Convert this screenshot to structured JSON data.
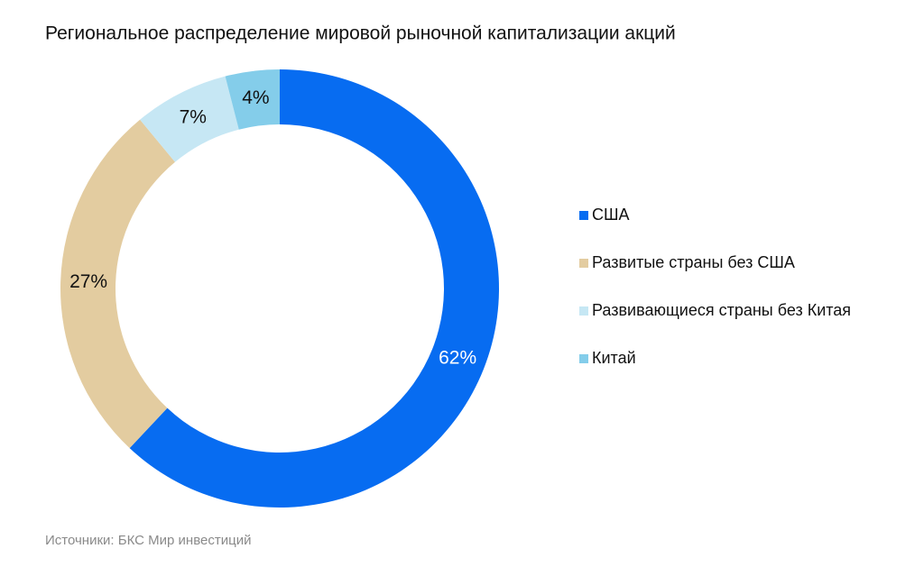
{
  "chart_data": {
    "type": "donut",
    "title": "Региональное распределение мировой рыночной капитализации акций",
    "categories": [
      "США",
      "Развитые страны без США",
      "Развивающиеся страны без Китая",
      "Китай"
    ],
    "values": [
      62,
      27,
      7,
      4
    ],
    "value_labels": [
      "62%",
      "27%",
      "7%",
      "4%"
    ],
    "colors": [
      "#076cf1",
      "#e3cca0",
      "#c6e7f4",
      "#84cdea"
    ],
    "source": "Источники: БКС Мир инвестиций"
  }
}
